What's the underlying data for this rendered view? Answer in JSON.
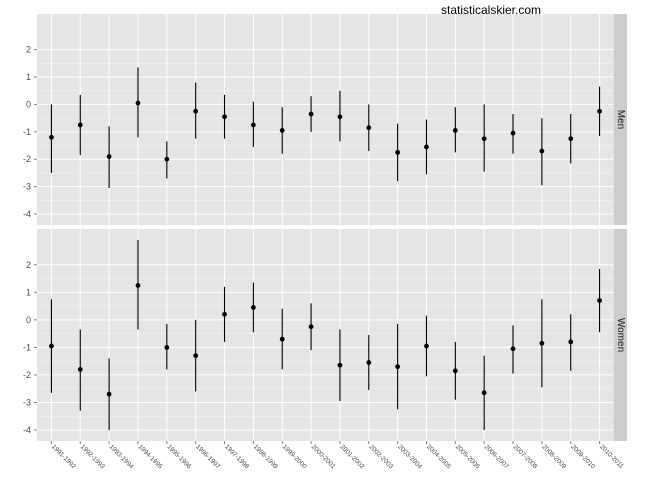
{
  "watermark": "statisticalskier.com",
  "chart_data": {
    "type": "scatter",
    "style": "point-range with vertical error bars, faceted vertically",
    "x_categories": [
      "1991-1992",
      "1992-1993",
      "1993-1994",
      "1994-1995",
      "1995-1996",
      "1996-1997",
      "1997-1998",
      "1998-1999",
      "1999-2000",
      "2000-2001",
      "2001-2002",
      "2002-2003",
      "2003-2004",
      "2004-2005",
      "2005-2006",
      "2006-2007",
      "2007-2008",
      "2008-2009",
      "2009-2010",
      "2010-2011"
    ],
    "y_ticks": [
      -4,
      -3,
      -2,
      -1,
      0,
      1,
      2
    ],
    "ylim": [
      -4.4,
      3.3
    ],
    "grid": true,
    "title": "",
    "xlabel": "",
    "ylabel": "",
    "facets": [
      {
        "label": "Men",
        "points": [
          {
            "x": "1991-1992",
            "y": -1.2,
            "low": -2.5,
            "high": 0.0
          },
          {
            "x": "1992-1993",
            "y": -0.75,
            "low": -1.85,
            "high": 0.35
          },
          {
            "x": "1993-1994",
            "y": -1.9,
            "low": -3.05,
            "high": -0.8
          },
          {
            "x": "1994-1995",
            "y": 0.05,
            "low": -1.2,
            "high": 1.35
          },
          {
            "x": "1995-1996",
            "y": -2.0,
            "low": -2.7,
            "high": -1.35
          },
          {
            "x": "1996-1997",
            "y": -0.25,
            "low": -1.25,
            "high": 0.8
          },
          {
            "x": "1997-1998",
            "y": -0.45,
            "low": -1.25,
            "high": 0.35
          },
          {
            "x": "1998-1999",
            "y": -0.75,
            "low": -1.55,
            "high": 0.1
          },
          {
            "x": "1999-2000",
            "y": -0.95,
            "low": -1.8,
            "high": -0.1
          },
          {
            "x": "2000-2001",
            "y": -0.35,
            "low": -1.0,
            "high": 0.3
          },
          {
            "x": "2001-2002",
            "y": -0.45,
            "low": -1.35,
            "high": 0.5
          },
          {
            "x": "2002-2003",
            "y": -0.85,
            "low": -1.7,
            "high": 0.0
          },
          {
            "x": "2003-2004",
            "y": -1.75,
            "low": -2.8,
            "high": -0.7
          },
          {
            "x": "2004-2005",
            "y": -1.55,
            "low": -2.55,
            "high": -0.55
          },
          {
            "x": "2005-2006",
            "y": -0.95,
            "low": -1.75,
            "high": -0.1
          },
          {
            "x": "2006-2007",
            "y": -1.25,
            "low": -2.45,
            "high": 0.0
          },
          {
            "x": "2007-2008",
            "y": -1.05,
            "low": -1.8,
            "high": -0.35
          },
          {
            "x": "2008-2009",
            "y": -1.7,
            "low": -2.95,
            "high": -0.5
          },
          {
            "x": "2009-2010",
            "y": -1.25,
            "low": -2.15,
            "high": -0.35
          },
          {
            "x": "2010-2011",
            "y": -0.25,
            "low": -1.15,
            "high": 0.65
          }
        ]
      },
      {
        "label": "Women",
        "points": [
          {
            "x": "1991-1992",
            "y": -0.95,
            "low": -2.65,
            "high": 0.75
          },
          {
            "x": "1992-1993",
            "y": -1.8,
            "low": -3.3,
            "high": -0.35
          },
          {
            "x": "1993-1994",
            "y": -2.7,
            "low": -4.0,
            "high": -1.4
          },
          {
            "x": "1994-1995",
            "y": 1.25,
            "low": -0.35,
            "high": 2.9
          },
          {
            "x": "1995-1996",
            "y": -1.0,
            "low": -1.8,
            "high": -0.15
          },
          {
            "x": "1996-1997",
            "y": -1.3,
            "low": -2.6,
            "high": 0.0
          },
          {
            "x": "1997-1998",
            "y": 0.2,
            "low": -0.8,
            "high": 1.2
          },
          {
            "x": "1998-1999",
            "y": 0.45,
            "low": -0.45,
            "high": 1.35
          },
          {
            "x": "1999-2000",
            "y": -0.7,
            "low": -1.8,
            "high": 0.4
          },
          {
            "x": "2000-2001",
            "y": -0.25,
            "low": -1.1,
            "high": 0.6
          },
          {
            "x": "2001-2002",
            "y": -1.65,
            "low": -2.95,
            "high": -0.35
          },
          {
            "x": "2002-2003",
            "y": -1.55,
            "low": -2.55,
            "high": -0.55
          },
          {
            "x": "2003-2004",
            "y": -1.7,
            "low": -3.25,
            "high": -0.15
          },
          {
            "x": "2004-2005",
            "y": -0.95,
            "low": -2.05,
            "high": 0.15
          },
          {
            "x": "2005-2006",
            "y": -1.85,
            "low": -2.9,
            "high": -0.8
          },
          {
            "x": "2006-2007",
            "y": -2.65,
            "low": -4.0,
            "high": -1.3
          },
          {
            "x": "2007-2008",
            "y": -1.05,
            "low": -1.95,
            "high": -0.2
          },
          {
            "x": "2008-2009",
            "y": -0.85,
            "low": -2.45,
            "high": 0.75
          },
          {
            "x": "2009-2010",
            "y": -0.8,
            "low": -1.85,
            "high": 0.2
          },
          {
            "x": "2010-2011",
            "y": 0.7,
            "low": -0.45,
            "high": 1.85
          }
        ]
      }
    ]
  }
}
